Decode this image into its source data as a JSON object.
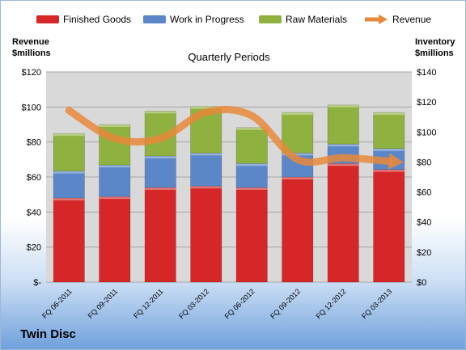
{
  "company": "Twin Disc",
  "colors": {
    "finished": "#d62728",
    "wip": "#5b87c9",
    "raw": "#8fb13f",
    "revenue": "#e8883a",
    "plot_bg": "#d9d9d9"
  },
  "legend": [
    {
      "label": "Finished Goods",
      "key": "finished"
    },
    {
      "label": "Work in Progress",
      "key": "wip"
    },
    {
      "label": "Raw Materials",
      "key": "raw"
    },
    {
      "label": "Revenue",
      "key": "revenue"
    }
  ],
  "left_axis_header": [
    "Revenue",
    "$millions"
  ],
  "right_axis_header": [
    "Inventory",
    "$millions"
  ],
  "chart_data": {
    "type": "bar",
    "title": "Quarterly Periods",
    "categories": [
      "FQ 06-2011",
      "FQ 09-2011",
      "FQ 12-2011",
      "FQ 03-2012",
      "FQ 06-2012",
      "FQ 09-2012",
      "FQ 12-2012",
      "FQ 03-2013"
    ],
    "stacked": true,
    "series": [
      {
        "name": "Finished Goods",
        "axis": "right",
        "values": [
          56,
          57,
          63,
          64,
          63,
          70,
          79,
          75
        ]
      },
      {
        "name": "Work in Progress",
        "axis": "right",
        "values": [
          18,
          21,
          21,
          22,
          16,
          16,
          13,
          14
        ]
      },
      {
        "name": "Raw Materials",
        "axis": "right",
        "values": [
          25,
          27,
          30,
          31,
          24,
          27,
          26,
          24
        ]
      },
      {
        "name": "Revenue",
        "type": "line",
        "axis": "left",
        "values": [
          98,
          82,
          82,
          97,
          95,
          70,
          71,
          69
        ]
      }
    ],
    "left_axis": {
      "min": 0,
      "max": 120,
      "step": 20,
      "tick_labels": [
        "$-",
        "$20",
        "$40",
        "$60",
        "$80",
        "$100",
        "$120"
      ]
    },
    "right_axis": {
      "min": 0,
      "max": 140,
      "step": 20,
      "tick_labels": [
        "$0",
        "$20",
        "$40",
        "$60",
        "$80",
        "$100",
        "$120",
        "$140"
      ]
    },
    "grid": true,
    "legend_position": "top"
  }
}
